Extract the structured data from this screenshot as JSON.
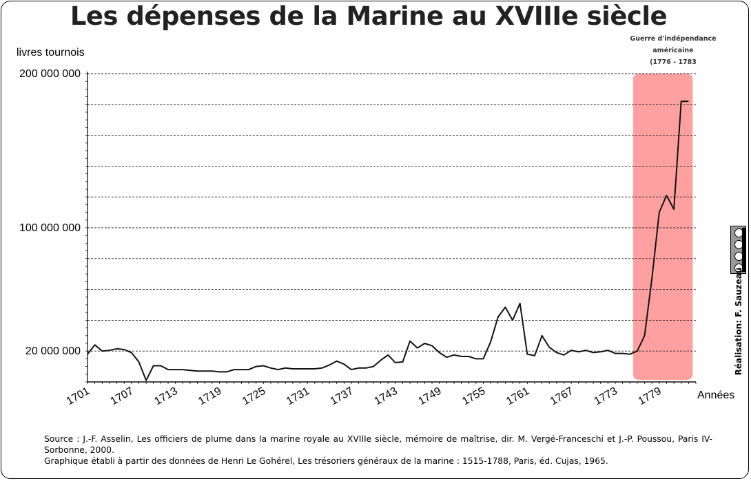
{
  "chart_data": {
    "type": "line",
    "title": "Les dépenses de la Marine au XVIIIe siècle",
    "ylabel": "livres tournois",
    "xlabel": "Années",
    "ytick_labels": [
      {
        "label": "200 000 000",
        "value": 200000000
      },
      {
        "label": "100 000 000",
        "value": 100000000
      },
      {
        "label": "20 000 000",
        "value": 20000000
      }
    ],
    "xtick_labels": [
      "1701",
      "1707",
      "1713",
      "1719",
      "1725",
      "1731",
      "1737",
      "1743",
      "1749",
      "1755",
      "1761",
      "1767",
      "1773",
      "1779"
    ],
    "x_range": [
      1701,
      1784
    ],
    "ylim": [
      0,
      200000000
    ],
    "grid": true,
    "highlight": {
      "x_start": 1776,
      "x_end": 1783,
      "color": "#ffa0a0"
    },
    "annotation": [
      "Guerre d'indépendance",
      "américaine",
      "(1776 - 1783"
    ],
    "line_color": "#111111",
    "series": [
      {
        "x": [
          1701,
          1702,
          1703,
          1704,
          1705,
          1706,
          1707,
          1708,
          1709,
          1710,
          1711,
          1712,
          1713,
          1714,
          1715,
          1716,
          1717,
          1718,
          1719,
          1720,
          1721,
          1722,
          1723,
          1724,
          1725,
          1726,
          1727,
          1728,
          1729,
          1730,
          1731,
          1732,
          1733,
          1734,
          1735,
          1736,
          1737,
          1738,
          1739,
          1740,
          1741,
          1742,
          1743,
          1744,
          1745,
          1746,
          1747,
          1748,
          1749,
          1750,
          1751,
          1752,
          1753,
          1754,
          1755,
          1756,
          1757,
          1758,
          1759,
          1760,
          1761,
          1762,
          1763,
          1764,
          1765,
          1766,
          1767,
          1768,
          1769,
          1770,
          1771,
          1772,
          1773,
          1774,
          1775,
          1776,
          1777,
          1778,
          1779,
          1780,
          1781,
          1782,
          1783
        ],
        "values": [
          18000000,
          24000000,
          20000000,
          20500000,
          21500000,
          21000000,
          19000000,
          13000000,
          1000000,
          10500000,
          10500000,
          8000000,
          8000000,
          8000000,
          7500000,
          7000000,
          7000000,
          7000000,
          6500000,
          6500000,
          8000000,
          8000000,
          8000000,
          10000000,
          10500000,
          9000000,
          8000000,
          9000000,
          8500000,
          8500000,
          8500000,
          8500000,
          9000000,
          11000000,
          13500000,
          11500000,
          8000000,
          9000000,
          9000000,
          10000000,
          14000000,
          17500000,
          12500000,
          13000000,
          26500000,
          22000000,
          25000000,
          23500000,
          19000000,
          16000000,
          17500000,
          16500000,
          16500000,
          15000000,
          15000000,
          26000000,
          42000000,
          48500000,
          40000000,
          51000000,
          18000000,
          17000000,
          30000000,
          22500000,
          19000000,
          17500000,
          20500000,
          19500000,
          20500000,
          19000000,
          19500000,
          20500000,
          18500000,
          18500000,
          18000000,
          20000000,
          30000000,
          67000000,
          110000000,
          121000000,
          112000000,
          182000000,
          182000000
        ]
      }
    ]
  },
  "source": {
    "line1": "Source : J.-F. Asselin, Les officiers de plume dans la marine royale au XVIIIe siècle, mémoire de maîtrise, dir. M. Vergé-Franceschi et J.-P. Poussou, Paris IV-Sorbonne, 2000.",
    "line2": "Graphique établi à partir des données de Henri Le Gohérel, Les trésoriers généraux de la marine : 1515-1788, Paris, éd. Cujas, 1965."
  },
  "credit": "Réalisation: F. Sauzeau",
  "license_icon": "cc-by-nc-sa-icon"
}
